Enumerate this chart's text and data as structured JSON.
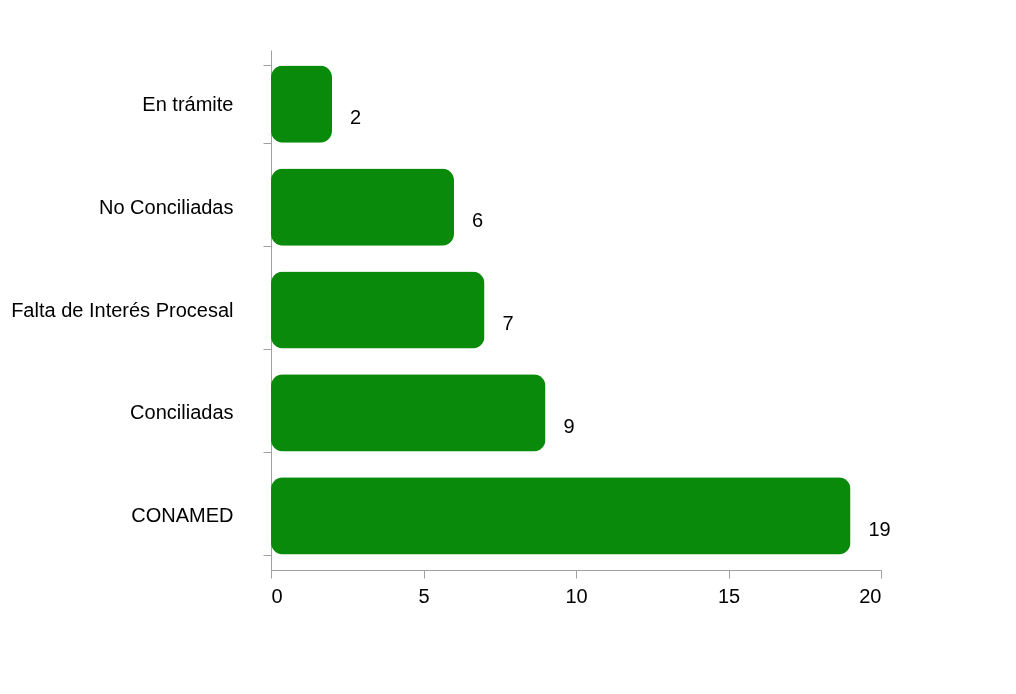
{
  "chart_data": {
    "type": "bar",
    "orientation": "horizontal",
    "categories": [
      "En trámite",
      "No Conciliadas",
      "Falta de Interés Procesal",
      "Conciliadas",
      "CONAMED"
    ],
    "values": [
      2,
      6,
      7,
      9,
      19
    ],
    "color": "#0a8a0a",
    "xlim": [
      0,
      20
    ],
    "xticks": [
      0,
      5,
      10,
      15,
      20
    ],
    "data_labels": true
  }
}
